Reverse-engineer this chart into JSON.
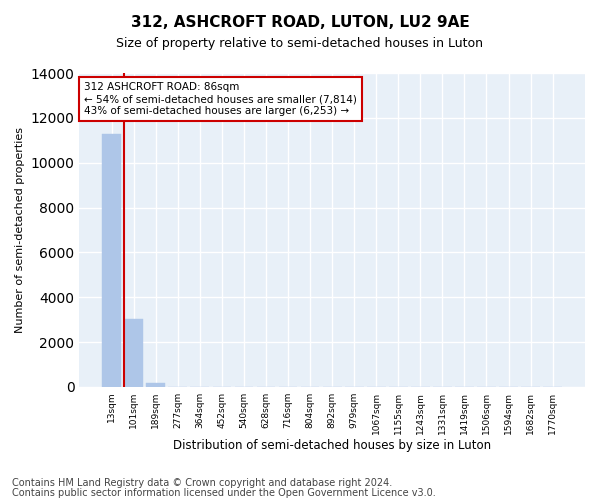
{
  "title": "312, ASHCROFT ROAD, LUTON, LU2 9AE",
  "subtitle": "Size of property relative to semi-detached houses in Luton",
  "xlabel": "Distribution of semi-detached houses by size in Luton",
  "ylabel": "Number of semi-detached properties",
  "bar_categories": [
    "13sqm",
    "101sqm",
    "189sqm",
    "277sqm",
    "364sqm",
    "452sqm",
    "540sqm",
    "628sqm",
    "716sqm",
    "804sqm",
    "892sqm",
    "979sqm",
    "1067sqm",
    "1155sqm",
    "1243sqm",
    "1331sqm",
    "1419sqm",
    "1506sqm",
    "1594sqm",
    "1682sqm",
    "1770sqm"
  ],
  "bar_values": [
    11300,
    3050,
    190,
    0,
    0,
    0,
    0,
    0,
    0,
    0,
    0,
    0,
    0,
    0,
    0,
    0,
    0,
    0,
    0,
    0,
    0
  ],
  "bar_color": "#aec6e8",
  "bar_edge_color": "#aec6e8",
  "vline_x_index": 1,
  "vline_color": "#cc0000",
  "annotation_text": "312 ASHCROFT ROAD: 86sqm\n← 54% of semi-detached houses are smaller (7,814)\n43% of semi-detached houses are larger (6,253) →",
  "annotation_box_color": "#ffffff",
  "annotation_box_edgecolor": "#cc0000",
  "ylim": [
    0,
    14000
  ],
  "yticks": [
    0,
    2000,
    4000,
    6000,
    8000,
    10000,
    12000,
    14000
  ],
  "background_color": "#e8f0f8",
  "grid_color": "#ffffff",
  "footer_line1": "Contains HM Land Registry data © Crown copyright and database right 2024.",
  "footer_line2": "Contains public sector information licensed under the Open Government Licence v3.0.",
  "title_fontsize": 11,
  "subtitle_fontsize": 9,
  "xlabel_fontsize": 8.5,
  "ylabel_fontsize": 8,
  "footer_fontsize": 7,
  "annot_fontsize": 7.5,
  "tick_fontsize": 6.5
}
